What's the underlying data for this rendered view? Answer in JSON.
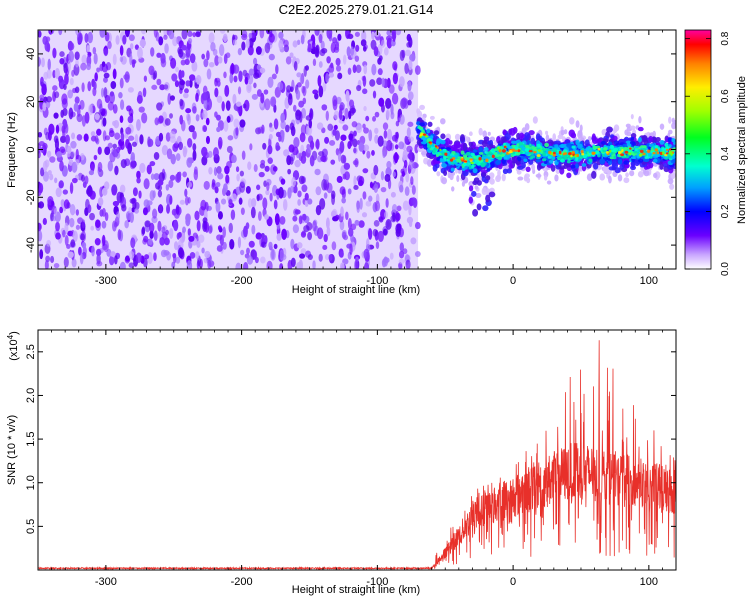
{
  "title": "C2E2.2025.279.01.21.G14",
  "chart_data": [
    {
      "type": "heatmap",
      "title": "C2E2.2025.279.01.21.G14",
      "xlabel": "Height of straight line (km)",
      "ylabel": "Frequency (Hz)",
      "xlim": [
        -350,
        120
      ],
      "ylim": [
        -50,
        50
      ],
      "xticks": [
        -300,
        -200,
        -100,
        0,
        100
      ],
      "xtick_labels": [
        "-300",
        "-200",
        "-100",
        "0",
        "100"
      ],
      "yticks": [
        -40,
        -20,
        0,
        20,
        40
      ],
      "ytick_labels": [
        "-40",
        "-20",
        "0",
        "20",
        "40"
      ],
      "noise_region_x": [
        -350,
        -70
      ],
      "signal_track": [
        {
          "x": -70,
          "y": 8
        },
        {
          "x": -60,
          "y": 2
        },
        {
          "x": -50,
          "y": -3
        },
        {
          "x": -40,
          "y": -4
        },
        {
          "x": -30,
          "y": -5
        },
        {
          "x": -20,
          "y": -4
        },
        {
          "x": -10,
          "y": -1
        },
        {
          "x": 0,
          "y": 0
        },
        {
          "x": 20,
          "y": -1
        },
        {
          "x": 40,
          "y": -2
        },
        {
          "x": 60,
          "y": -1
        },
        {
          "x": 80,
          "y": -1
        },
        {
          "x": 100,
          "y": -1
        },
        {
          "x": 120,
          "y": -1
        }
      ],
      "colorbar": {
        "label": "Normalized spectral amplitude",
        "range": [
          0,
          0.83
        ],
        "ticks": [
          0.0,
          0.2,
          0.4,
          0.6,
          0.8
        ],
        "tick_labels": [
          "0.0",
          "0.2",
          "0.4",
          "0.6",
          "0.8"
        ]
      }
    },
    {
      "type": "line",
      "xlabel": "Height of straight line (km)",
      "ylabel": "SNR (10 * v/v)",
      "y_scale_label": "(x10",
      "y_scale_exp": "4",
      "xlim": [
        -350,
        120
      ],
      "ylim": [
        0,
        2.75
      ],
      "xticks": [
        -300,
        -200,
        -100,
        0,
        100
      ],
      "xtick_labels": [
        "-300",
        "-200",
        "-100",
        "0",
        "100"
      ],
      "yticks": [
        0.5,
        1.0,
        1.5,
        2.0,
        2.5
      ],
      "ytick_labels": [
        "0.5",
        "1.0",
        "1.5",
        "2.0",
        "2.5"
      ],
      "series": [
        {
          "name": "SNR",
          "color": "#e8302a",
          "baseline_value": 0.02,
          "envelope": [
            {
              "x": -350,
              "mean": 0.02,
              "max": 0.04
            },
            {
              "x": -60,
              "mean": 0.02,
              "max": 0.05
            },
            {
              "x": -50,
              "mean": 0.2,
              "max": 0.45
            },
            {
              "x": -40,
              "mean": 0.4,
              "max": 0.75
            },
            {
              "x": -30,
              "mean": 0.6,
              "max": 0.95
            },
            {
              "x": -15,
              "mean": 0.75,
              "max": 1.1
            },
            {
              "x": 0,
              "mean": 0.85,
              "max": 1.25
            },
            {
              "x": 15,
              "mean": 0.95,
              "max": 1.45
            },
            {
              "x": 30,
              "mean": 1.05,
              "max": 1.75
            },
            {
              "x": 45,
              "mean": 1.15,
              "max": 2.35
            },
            {
              "x": 60,
              "mean": 1.1,
              "max": 2.75
            },
            {
              "x": 75,
              "mean": 1.05,
              "max": 2.3
            },
            {
              "x": 90,
              "mean": 1.0,
              "max": 1.9
            },
            {
              "x": 105,
              "mean": 0.95,
              "max": 1.6
            },
            {
              "x": 120,
              "mean": 0.9,
              "max": 1.3
            }
          ]
        }
      ]
    }
  ]
}
